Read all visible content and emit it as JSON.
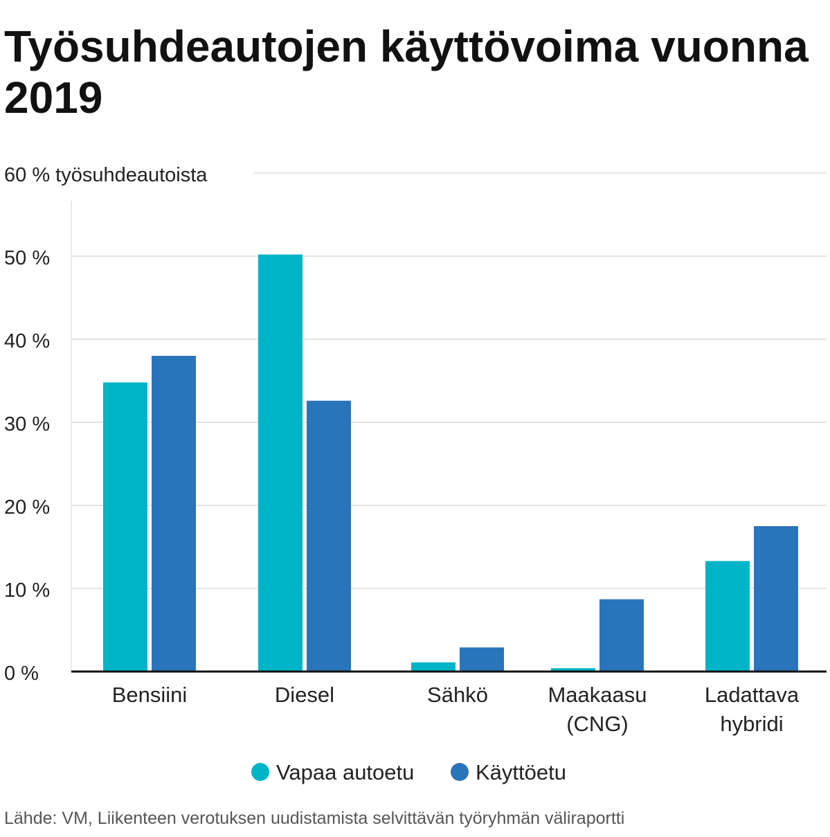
{
  "chart_data": {
    "type": "bar",
    "title": "Työsuhdeautojen käyttövoima vuonna 2019",
    "ylabel": "työsuhdeautoista",
    "ylim": [
      0,
      60
    ],
    "yticks": [
      0,
      10,
      20,
      30,
      40,
      50,
      60
    ],
    "ytick_labels": [
      "0 %",
      "10 %",
      "20 %",
      "30 %",
      "40 %",
      "50 %",
      "60 % työsuhdeautoista"
    ],
    "categories": [
      [
        "Bensiini"
      ],
      [
        "Diesel"
      ],
      [
        "Sähkö"
      ],
      [
        "Maakaasu",
        "(CNG)"
      ],
      [
        "Ladattava",
        "hybridi"
      ]
    ],
    "series": [
      {
        "name": "Vapaa autoetu",
        "color": "#00b4c8",
        "values": [
          34.8,
          50.2,
          1.1,
          0.4,
          13.3
        ]
      },
      {
        "name": "Käyttöetu",
        "color": "#2a74bb",
        "values": [
          38.0,
          32.6,
          2.9,
          8.7,
          17.5
        ]
      }
    ],
    "grid": true,
    "legend": "bottom-center",
    "source": "Lähde: VM, Liikenteen verotuksen uudistamista selvittävän työryhmän väliraportti"
  }
}
